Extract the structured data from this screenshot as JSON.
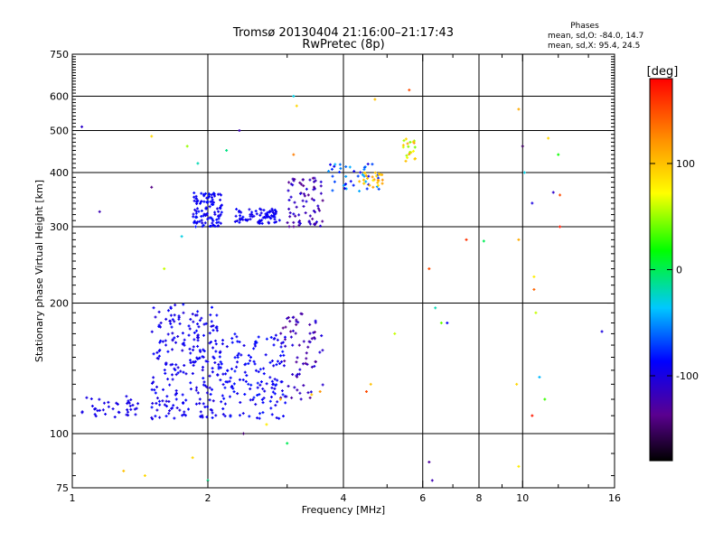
{
  "chart_data": {
    "type": "scatter",
    "title": "Tromsø 20130404 21:16:00–21:17:43",
    "subtitle": "RwPretec (8p)",
    "xlabel": "Frequency [MHz]",
    "ylabel": "Stationary phase Virtual Height [km]",
    "x_scale": "log",
    "y_scale": "log",
    "xlim": [
      1,
      16
    ],
    "ylim": [
      75,
      750
    ],
    "x_ticks": [
      1,
      2,
      4,
      6,
      8,
      10,
      16
    ],
    "x_tick_labels": [
      "1",
      "2",
      "4",
      "6",
      "8",
      "10",
      "16"
    ],
    "x_minor_ticks": [
      3,
      5,
      7,
      9,
      12,
      14
    ],
    "y_ticks": [
      75,
      100,
      200,
      300,
      400,
      500,
      600,
      750
    ],
    "y_tick_labels": [
      "75",
      "100",
      "200",
      "300",
      "400",
      "500",
      "600",
      "750"
    ],
    "grid": true,
    "phase_info": {
      "title": "Phases",
      "line1": "mean, sd,O: -84.0, 14.7",
      "line2": "mean, sd,X:  95.4, 24.5"
    },
    "colorbar": {
      "label": "[deg]",
      "range": [
        -180,
        180
      ],
      "ticks": [
        100,
        0,
        -100
      ],
      "tick_labels": [
        "100",
        "0",
        "-100"
      ],
      "colormap": "rainbow (black→purple→blue→cyan→green→yellow→red)"
    },
    "series": [
      {
        "clusters": [
          {
            "x": [
              1.05,
              1.4
            ],
            "y": [
              108,
              122
            ],
            "phase": [
              -100,
              -95
            ],
            "n": 40
          },
          {
            "x": [
              1.5,
              2.1
            ],
            "y": [
              108,
              200
            ],
            "phase": [
              -105,
              -85
            ],
            "n": 230
          },
          {
            "x": [
              2.1,
              3.0
            ],
            "y": [
              108,
              170
            ],
            "phase": [
              -100,
              -80
            ],
            "n": 160
          },
          {
            "x": [
              2.9,
              3.6
            ],
            "y": [
              120,
              190
            ],
            "phase": [
              -140,
              -100
            ],
            "n": 70
          },
          {
            "x": [
              1.85,
              2.15
            ],
            "y": [
              300,
              360
            ],
            "phase": [
              -100,
              -80
            ],
            "n": 110
          },
          {
            "x": [
              2.3,
              2.9
            ],
            "y": [
              305,
              330
            ],
            "phase": [
              -100,
              -85
            ],
            "n": 80
          },
          {
            "x": [
              3.0,
              3.6
            ],
            "y": [
              300,
              390
            ],
            "phase": [
              -140,
              -100
            ],
            "n": 70
          },
          {
            "x": [
              3.7,
              4.8
            ],
            "y": [
              360,
              420
            ],
            "phase": [
              -100,
              -40
            ],
            "n": 40
          },
          {
            "x": [
              4.3,
              4.9
            ],
            "y": [
              370,
              400
            ],
            "phase": [
              80,
              120
            ],
            "n": 25
          },
          {
            "x": [
              5.4,
              5.8
            ],
            "y": [
              420,
              480
            ],
            "phase": [
              40,
              130
            ],
            "n": 20
          }
        ],
        "isolated_points": [
          {
            "x": 1.05,
            "y": 510,
            "phase": -110
          },
          {
            "x": 1.15,
            "y": 325,
            "phase": -120
          },
          {
            "x": 1.5,
            "y": 485,
            "phase": 90
          },
          {
            "x": 1.5,
            "y": 370,
            "phase": -140
          },
          {
            "x": 1.45,
            "y": 80,
            "phase": 90
          },
          {
            "x": 1.3,
            "y": 82,
            "phase": 100
          },
          {
            "x": 1.8,
            "y": 460,
            "phase": 50
          },
          {
            "x": 1.9,
            "y": 420,
            "phase": -20
          },
          {
            "x": 1.75,
            "y": 285,
            "phase": -30
          },
          {
            "x": 1.6,
            "y": 240,
            "phase": 60
          },
          {
            "x": 2.2,
            "y": 450,
            "phase": -10
          },
          {
            "x": 2.35,
            "y": 500,
            "phase": -120
          },
          {
            "x": 3.1,
            "y": 600,
            "phase": -30
          },
          {
            "x": 3.15,
            "y": 570,
            "phase": 90
          },
          {
            "x": 3.1,
            "y": 440,
            "phase": 130
          },
          {
            "x": 4.7,
            "y": 590,
            "phase": 100
          },
          {
            "x": 5.6,
            "y": 620,
            "phase": 150
          },
          {
            "x": 6.2,
            "y": 240,
            "phase": 150
          },
          {
            "x": 6.4,
            "y": 195,
            "phase": -20
          },
          {
            "x": 6.6,
            "y": 180,
            "phase": 40
          },
          {
            "x": 6.8,
            "y": 180,
            "phase": -90
          },
          {
            "x": 7.5,
            "y": 280,
            "phase": 160
          },
          {
            "x": 8.2,
            "y": 278,
            "phase": 0
          },
          {
            "x": 9.8,
            "y": 280,
            "phase": 110
          },
          {
            "x": 9.8,
            "y": 560,
            "phase": 110
          },
          {
            "x": 10.0,
            "y": 460,
            "phase": -150
          },
          {
            "x": 10.1,
            "y": 400,
            "phase": -30
          },
          {
            "x": 10.5,
            "y": 340,
            "phase": -100
          },
          {
            "x": 10.6,
            "y": 230,
            "phase": 80
          },
          {
            "x": 10.6,
            "y": 215,
            "phase": 140
          },
          {
            "x": 10.7,
            "y": 190,
            "phase": 60
          },
          {
            "x": 10.9,
            "y": 135,
            "phase": -40
          },
          {
            "x": 11.2,
            "y": 120,
            "phase": 30
          },
          {
            "x": 11.4,
            "y": 480,
            "phase": 90
          },
          {
            "x": 11.7,
            "y": 360,
            "phase": -110
          },
          {
            "x": 12.0,
            "y": 440,
            "phase": 20
          },
          {
            "x": 12.1,
            "y": 355,
            "phase": 150
          },
          {
            "x": 12.1,
            "y": 300,
            "phase": 170
          },
          {
            "x": 10.5,
            "y": 110,
            "phase": 170
          },
          {
            "x": 9.7,
            "y": 130,
            "phase": 90
          },
          {
            "x": 9.8,
            "y": 84,
            "phase": 80
          },
          {
            "x": 6.2,
            "y": 86,
            "phase": -130
          },
          {
            "x": 6.3,
            "y": 78,
            "phase": -120
          },
          {
            "x": 5.2,
            "y": 170,
            "phase": 60
          },
          {
            "x": 4.6,
            "y": 130,
            "phase": 100
          },
          {
            "x": 4.5,
            "y": 125,
            "phase": 150
          },
          {
            "x": 15.0,
            "y": 172,
            "phase": -100
          },
          {
            "x": 2.4,
            "y": 100,
            "phase": -150
          },
          {
            "x": 2.7,
            "y": 105,
            "phase": 80
          },
          {
            "x": 3.0,
            "y": 95,
            "phase": 0
          },
          {
            "x": 2.0,
            "y": 78,
            "phase": -10
          },
          {
            "x": 1.85,
            "y": 88,
            "phase": 90
          },
          {
            "x": 2.9,
            "y": 120,
            "phase": 110
          },
          {
            "x": 3.4,
            "y": 123,
            "phase": 100
          },
          {
            "x": 3.55,
            "y": 125,
            "phase": 120
          }
        ]
      }
    ]
  }
}
